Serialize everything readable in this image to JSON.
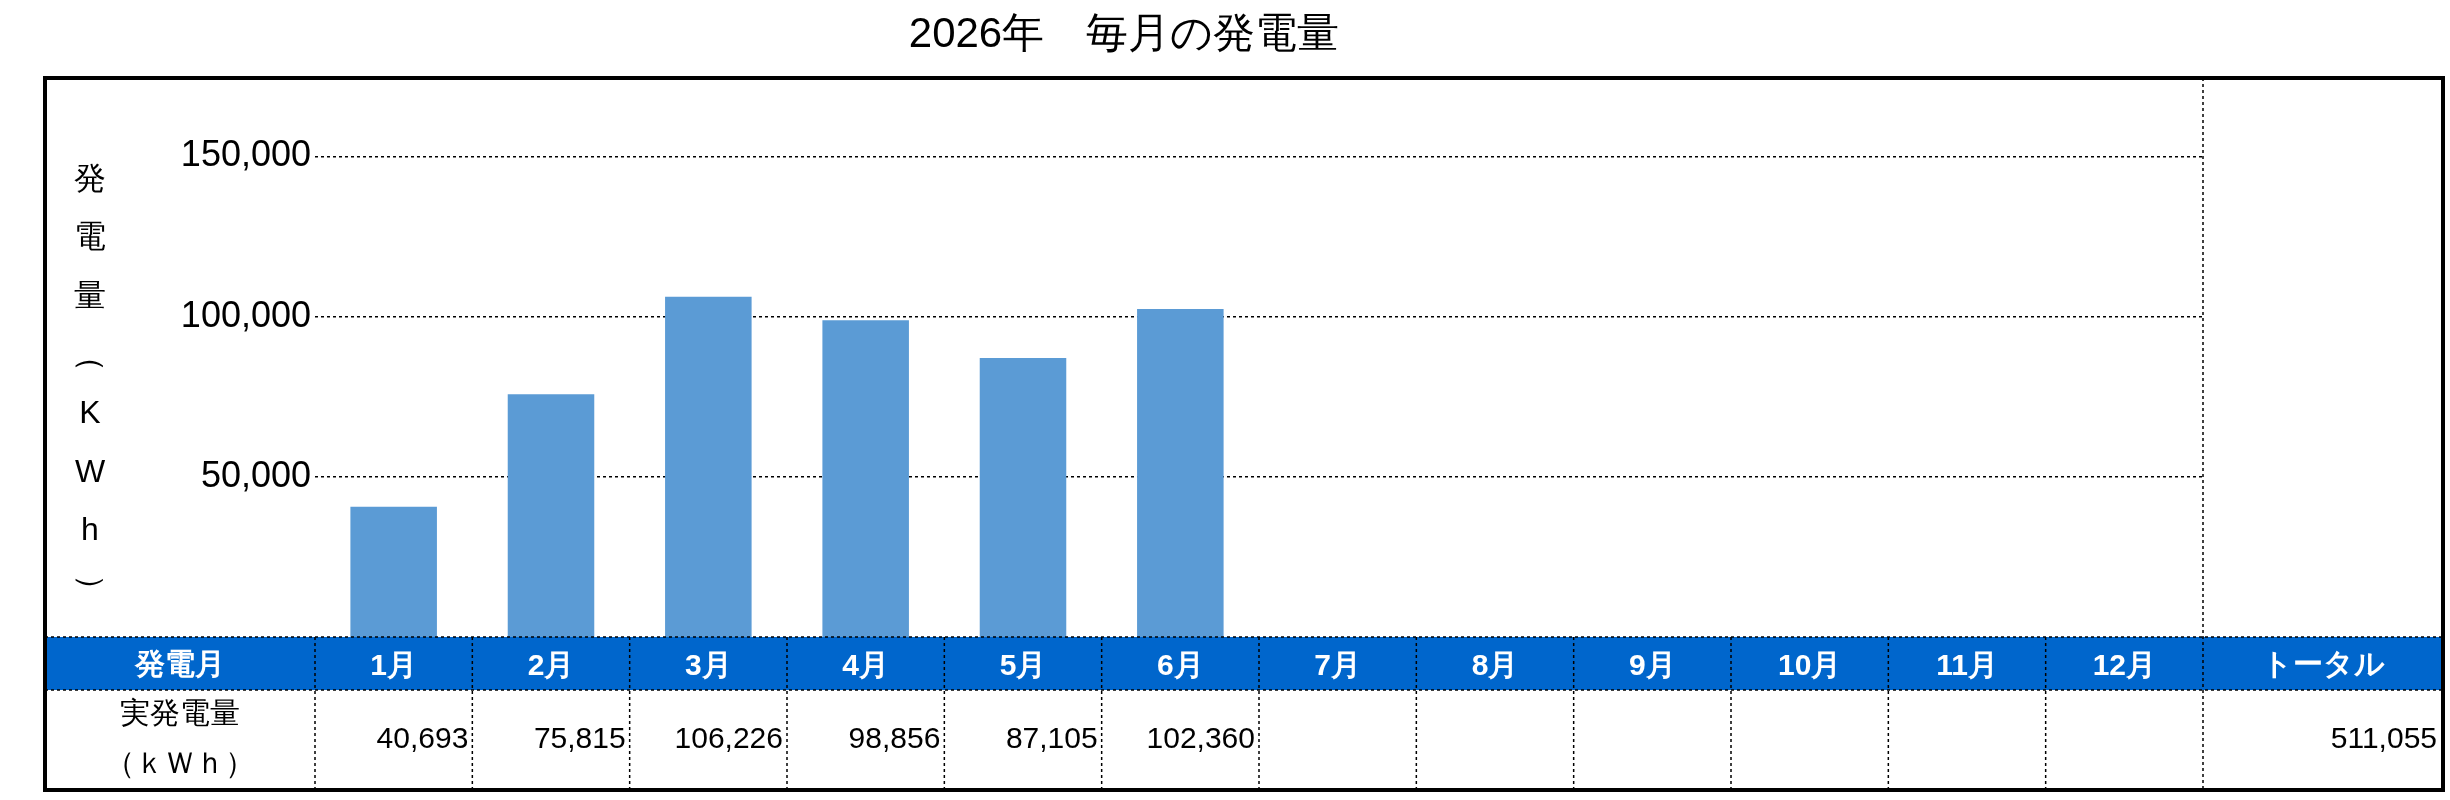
{
  "chart_data": {
    "type": "bar",
    "title": "2026年　毎月の発電量",
    "ylabel": "発電量（KWh）",
    "categories": [
      "1月",
      "2月",
      "3月",
      "4月",
      "5月",
      "6月",
      "7月",
      "8月",
      "9月",
      "10月",
      "11月",
      "12月"
    ],
    "values": [
      40693,
      75815,
      106226,
      98856,
      87105,
      102360,
      null,
      null,
      null,
      null,
      null,
      null
    ],
    "value_labels": [
      "40,693",
      "75,815",
      "106,226",
      "98,856",
      "87,105",
      "102,360",
      null,
      null,
      null,
      null,
      null,
      null
    ],
    "color": "#5b9bd5",
    "ylim": [
      0,
      175000
    ],
    "yticks": [
      {
        "value": 50000,
        "label": "50,000"
      },
      {
        "value": 100000,
        "label": "100,000"
      },
      {
        "value": 150000,
        "label": "150,000"
      }
    ],
    "grid": "y",
    "annotations": [
      "発電月",
      "実発電量",
      "（ｋＷｈ）",
      "トータル",
      "511,055"
    ]
  }
}
